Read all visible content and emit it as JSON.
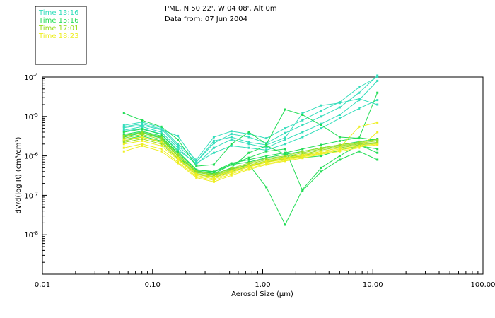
{
  "chart_data": {
    "type": "line",
    "title_lines": [
      "PML, N 50 22', W 04 08', Alt 0m",
      "Data from: 07 Jun 2004"
    ],
    "xlabel": "Aerosol Size (µm)",
    "ylabel": "dV/d(log R) (cm³/cm³)",
    "x_scale": "log",
    "y_scale": "log",
    "xlim": [
      0.01,
      100
    ],
    "ylim": [
      1e-09,
      0.0001
    ],
    "x_ticks": [
      {
        "value": 0.01,
        "label": "0.01"
      },
      {
        "value": 0.1,
        "label": "0.10"
      },
      {
        "value": 1,
        "label": "1.00"
      },
      {
        "value": 10,
        "label": "10.00"
      },
      {
        "value": 100,
        "label": "100.00"
      }
    ],
    "y_ticks": [
      {
        "value": 0.0001,
        "mant": "10",
        "exp": "-4"
      },
      {
        "value": 1e-05,
        "mant": "10",
        "exp": "-5"
      },
      {
        "value": 1e-06,
        "mant": "10",
        "exp": "-6"
      },
      {
        "value": 1e-07,
        "mant": "10",
        "exp": "-7"
      },
      {
        "value": 1e-08,
        "mant": "10",
        "exp": "-8"
      }
    ],
    "legend": [
      {
        "label": "Time 13:16",
        "color": "#33ddbb"
      },
      {
        "label": "Time 15:16",
        "color": "#22dd55"
      },
      {
        "label": "Time 17:01",
        "color": "#99dd22"
      },
      {
        "label": "Time 18:23",
        "color": "#eeee22"
      }
    ],
    "x": [
      0.055,
      0.08,
      0.12,
      0.17,
      0.25,
      0.36,
      0.52,
      0.75,
      1.08,
      1.6,
      2.3,
      3.4,
      5.0,
      7.5,
      11.0
    ],
    "series": [
      {
        "name": "13:16 a",
        "color": "#33ddbb",
        "values": [
          5.2e-06,
          6e-06,
          4.6e-06,
          3.2e-06,
          7e-07,
          2.1e-06,
          3.6e-06,
          3e-06,
          2.1e-06,
          3.8e-06,
          6e-06,
          1e-05,
          1.7e-05,
          4e-05,
          0.00012
        ]
      },
      {
        "name": "13:16 b",
        "color": "#33ddbb",
        "values": [
          6e-06,
          7.2e-06,
          5.2e-06,
          2e-06,
          8e-07,
          3e-06,
          4.2e-06,
          3.6e-06,
          2.8e-06,
          5e-06,
          8e-06,
          1.4e-05,
          2.3e-05,
          5.5e-05,
          0.0001
        ]
      },
      {
        "name": "13:16 c",
        "color": "#33ddbb",
        "values": [
          4.5e-06,
          5.5e-06,
          4e-06,
          1.6e-06,
          6e-07,
          1.6e-06,
          2.6e-06,
          2e-06,
          1.6e-06,
          2.6e-06,
          4e-06,
          6.5e-06,
          1.1e-05,
          2.6e-05,
          8e-05
        ]
      },
      {
        "name": "13:16 d",
        "color": "#33ddbb",
        "values": [
          5.5e-06,
          6.5e-06,
          4.8e-06,
          1.8e-06,
          7e-07,
          2.4e-06,
          3e-06,
          2.2e-06,
          1.9e-06,
          2.9e-06,
          1.2e-05,
          1.9e-05,
          2.2e-05,
          2.8e-05,
          2e-05
        ]
      },
      {
        "name": "13:16 e",
        "color": "#33ddbb",
        "values": [
          4.2e-06,
          5e-06,
          3.6e-06,
          1.4e-06,
          6.5e-07,
          1.2e-06,
          1.8e-06,
          1.6e-06,
          1.4e-06,
          2e-06,
          3e-06,
          5e-06,
          9e-06,
          1.6e-05,
          2.6e-05
        ]
      },
      {
        "name": "15:16 a",
        "color": "#22dd55",
        "values": [
          1.2e-05,
          8e-06,
          5.5e-06,
          2.6e-06,
          5.5e-07,
          6e-07,
          2e-06,
          4e-06,
          2e-06,
          1.5e-05,
          1.1e-05,
          6e-06,
          3e-06,
          2.8e-06,
          4e-05
        ]
      },
      {
        "name": "15:16 b",
        "color": "#22dd55",
        "values": [
          3.5e-06,
          4.2e-06,
          3.2e-06,
          1.1e-06,
          4e-07,
          3.5e-07,
          6e-07,
          7e-07,
          9e-07,
          1.1e-06,
          1.3e-06,
          1.6e-06,
          1.9e-06,
          2.3e-06,
          2.7e-06
        ]
      },
      {
        "name": "15:16 c",
        "color": "#22dd55",
        "values": [
          3e-06,
          3.8e-06,
          2.8e-06,
          1e-06,
          3.8e-07,
          3.3e-07,
          5e-07,
          1.2e-06,
          1.8e-06,
          1.1e-06,
          9e-07,
          1e-06,
          1.4e-06,
          1.8e-06,
          1.5e-06
        ]
      },
      {
        "name": "15:16 d",
        "color": "#22dd55",
        "values": [
          2.6e-06,
          3.2e-06,
          2.4e-06,
          9e-07,
          4.2e-07,
          3.6e-07,
          4.6e-07,
          6e-07,
          1.6e-07,
          1.8e-08,
          1.4e-07,
          5e-07,
          1e-06,
          1.9e-06,
          1.2e-06
        ]
      },
      {
        "name": "15:16 e",
        "color": "#22dd55",
        "values": [
          4e-06,
          4.8e-06,
          3.5e-06,
          1.3e-06,
          4.5e-07,
          4e-07,
          6.5e-07,
          8e-07,
          1e-06,
          1.2e-06,
          1.5e-06,
          1.9e-06,
          2.4e-06,
          2.9e-06,
          2.5e-06
        ]
      },
      {
        "name": "15:16 f",
        "color": "#22dd55",
        "values": [
          3.3e-06,
          4e-06,
          3e-06,
          1.2e-06,
          4.4e-07,
          3.9e-07,
          6e-07,
          9e-07,
          1.3e-06,
          1.5e-06,
          1.3e-07,
          4e-07,
          8e-07,
          1.3e-06,
          8e-07
        ]
      },
      {
        "name": "17:01 a",
        "color": "#99dd22",
        "values": [
          2.8e-06,
          3.5e-06,
          2.6e-06,
          1e-06,
          3.9e-07,
          3.2e-07,
          4.5e-07,
          6.2e-07,
          8e-07,
          9.5e-07,
          1.2e-06,
          1.5e-06,
          1.8e-06,
          2.1e-06,
          2.4e-06
        ]
      },
      {
        "name": "17:01 b",
        "color": "#99dd22",
        "values": [
          2.4e-06,
          3e-06,
          2.2e-06,
          9e-07,
          3.6e-07,
          3e-07,
          4.3e-07,
          5.8e-07,
          7.5e-07,
          9e-07,
          1.1e-06,
          1.4e-06,
          1.7e-06,
          2e-06,
          2.2e-06
        ]
      },
      {
        "name": "17:01 c",
        "color": "#99dd22",
        "values": [
          2.2e-06,
          2.7e-06,
          2e-06,
          8.5e-07,
          3.4e-07,
          2.8e-07,
          4e-07,
          5.5e-07,
          7e-07,
          8.5e-07,
          1e-06,
          1.3e-06,
          1.6e-06,
          1.9e-06,
          2.1e-06
        ]
      },
      {
        "name": "17:01 d",
        "color": "#99dd22",
        "values": [
          3.2e-06,
          3.9e-06,
          2.9e-06,
          1.1e-06,
          4.1e-07,
          3.4e-07,
          4.8e-07,
          6.6e-07,
          8.6e-07,
          1e-06,
          1.3e-06,
          1.6e-06,
          1.9e-06,
          2.2e-06,
          2.6e-06
        ]
      },
      {
        "name": "18:23 a",
        "color": "#eeee22",
        "values": [
          2e-06,
          2.4e-06,
          1.8e-06,
          8e-07,
          3.2e-07,
          2.6e-07,
          3.8e-07,
          5.2e-07,
          6.8e-07,
          8.2e-07,
          9.8e-07,
          1.2e-06,
          1.5e-06,
          1.8e-06,
          2e-06
        ]
      },
      {
        "name": "18:23 b",
        "color": "#eeee22",
        "values": [
          1.6e-06,
          2e-06,
          1.5e-06,
          7e-07,
          3e-07,
          2.4e-07,
          3.5e-07,
          4.8e-07,
          6.3e-07,
          7.8e-07,
          9.4e-07,
          1.15e-06,
          1.4e-06,
          1.7e-06,
          1.9e-06
        ]
      },
      {
        "name": "18:23 c",
        "color": "#eeee22",
        "values": [
          1.3e-06,
          1.8e-06,
          1.3e-06,
          6.5e-07,
          2.8e-07,
          2.2e-07,
          3.2e-07,
          4.5e-07,
          6e-07,
          7.4e-07,
          8.8e-07,
          1.1e-06,
          1.3e-06,
          1.6e-06,
          4e-06
        ]
      },
      {
        "name": "18:23 d",
        "color": "#eeee22",
        "values": [
          2.6e-06,
          3e-06,
          2.3e-06,
          9e-07,
          3.5e-07,
          2.9e-07,
          4.2e-07,
          5.7e-07,
          7.3e-07,
          8.8e-07,
          1.05e-06,
          1.3e-06,
          1.6e-06,
          5.5e-06,
          7e-06
        ]
      }
    ]
  }
}
